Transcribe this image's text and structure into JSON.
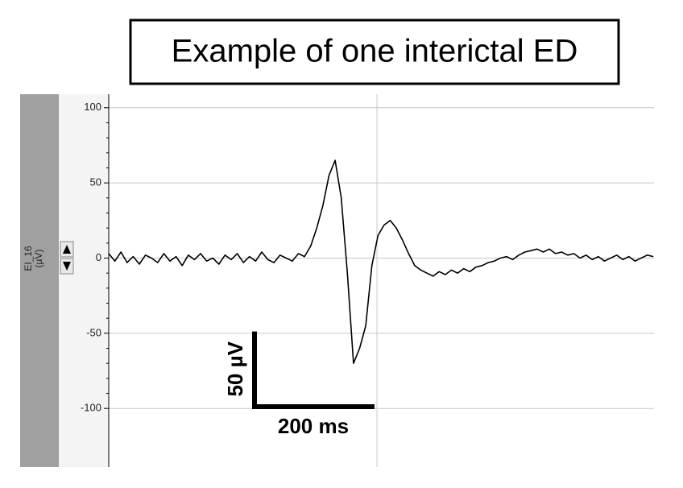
{
  "chart_data": {
    "type": "line",
    "title": "Example of one interictal ED",
    "channel": "EI_16",
    "unit": "(µV)",
    "x": [
      0,
      10,
      20,
      30,
      40,
      50,
      60,
      70,
      80,
      90,
      100,
      110,
      120,
      130,
      140,
      150,
      160,
      170,
      180,
      190,
      200,
      210,
      220,
      230,
      240,
      250,
      260,
      270,
      280,
      290,
      300,
      310,
      320,
      330,
      340,
      350,
      360,
      370,
      380,
      390,
      400,
      410,
      420,
      430,
      440,
      450,
      460,
      470,
      480,
      490,
      500,
      510,
      520,
      530,
      540,
      550,
      560,
      570,
      580,
      590,
      600,
      610,
      620,
      630,
      640,
      650,
      660,
      670,
      680,
      690,
      700,
      710,
      720,
      730,
      740,
      750,
      760,
      770,
      780,
      790,
      800,
      810,
      820,
      830,
      840,
      850,
      860,
      870,
      880,
      890
    ],
    "values": [
      3,
      -2,
      4,
      -3,
      1,
      -4,
      2,
      0,
      -3,
      3,
      -2,
      1,
      -5,
      2,
      -1,
      3,
      -2,
      0,
      -4,
      2,
      -1,
      3,
      -3,
      1,
      -2,
      4,
      -1,
      -3,
      2,
      0,
      -2,
      3,
      1,
      8,
      20,
      35,
      55,
      65,
      40,
      -10,
      -70,
      -60,
      -45,
      -5,
      15,
      22,
      25,
      20,
      12,
      3,
      -5,
      -8,
      -10,
      -12,
      -9,
      -11,
      -8,
      -10,
      -7,
      -9,
      -6,
      -5,
      -3,
      -2,
      0,
      1,
      -1,
      2,
      4,
      5,
      6,
      4,
      6,
      3,
      4,
      2,
      3,
      0,
      2,
      -1,
      1,
      -2,
      0,
      2,
      -1,
      1,
      -2,
      0,
      2,
      1
    ],
    "color": "#000000",
    "xlim": [
      0,
      891
    ],
    "ylim": [
      -139,
      109
    ],
    "yticks": [
      -100,
      -50,
      0,
      50,
      100
    ],
    "grid": true,
    "scale_bar": {
      "y": 50,
      "y_label": "50 µV",
      "x": 200,
      "x_label": "200 ms"
    }
  }
}
